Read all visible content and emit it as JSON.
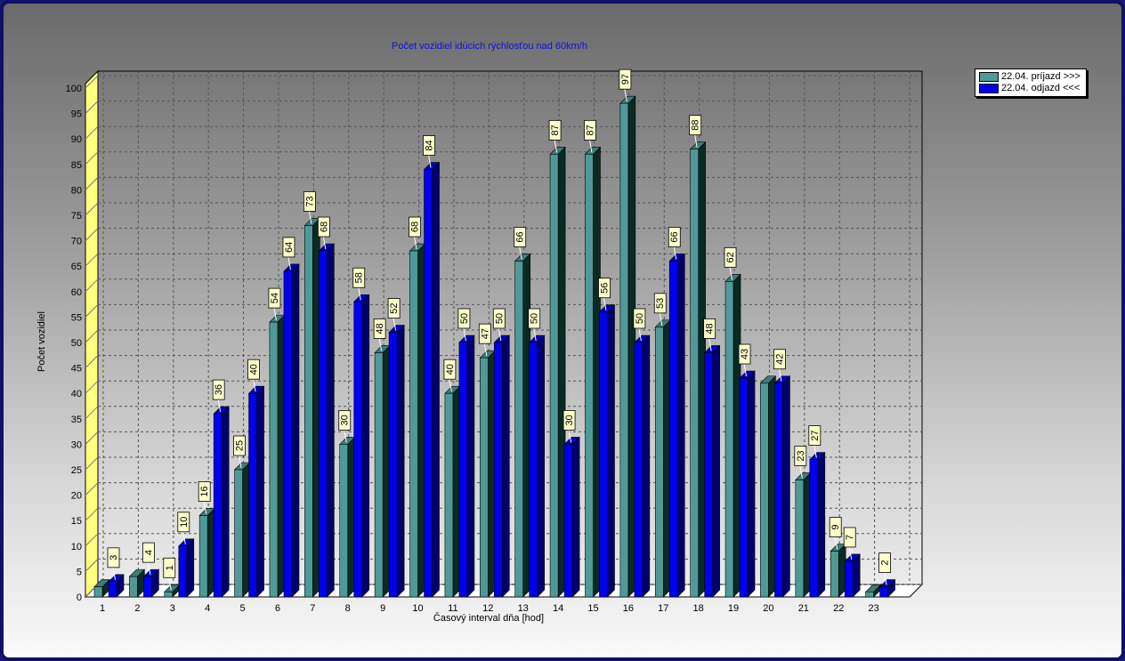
{
  "window": {
    "border_color": "#10106a"
  },
  "chart_data": {
    "type": "bar",
    "title": "Počet vozidiel idúcich rýchlosťou nad 60km/h",
    "xlabel": "Časový interval dňa [hod]",
    "ylabel": "Počet vozidiel",
    "ylim": [
      0,
      100
    ],
    "ytick_step": 5,
    "grid": true,
    "style": "3d",
    "legend_position": "top-right",
    "categories": [
      "1",
      "2",
      "3",
      "4",
      "5",
      "6",
      "7",
      "8",
      "9",
      "10",
      "11",
      "12",
      "13",
      "14",
      "15",
      "16",
      "17",
      "18",
      "19",
      "20",
      "21",
      "22",
      "23"
    ],
    "series": [
      {
        "name": "22.04.  príjazd >>>",
        "color": "#4f9a98",
        "values": [
          2,
          4,
          1,
          16,
          25,
          54,
          73,
          30,
          48,
          68,
          40,
          47,
          66,
          87,
          87,
          97,
          53,
          88,
          62,
          42,
          23,
          9,
          1
        ],
        "labels": [
          "",
          "",
          "1",
          "16",
          "25",
          "54",
          "73",
          "30",
          "48",
          "68",
          "40",
          "47",
          "66",
          "87",
          "87",
          "97",
          "53",
          "88",
          "62",
          "",
          "23",
          "9",
          ""
        ]
      },
      {
        "name": "22.04.  odjazd <<<",
        "color": "#0000ee",
        "values": [
          3,
          4,
          10,
          36,
          40,
          64,
          68,
          58,
          52,
          84,
          50,
          50,
          50,
          30,
          56,
          50,
          66,
          48,
          43,
          42,
          27,
          7,
          2
        ],
        "labels": [
          "3",
          "4",
          "10",
          "36",
          "40",
          "64",
          "68",
          "58",
          "52",
          "84",
          "50",
          "50",
          "50",
          "30",
          "56",
          "50",
          "66",
          "48",
          "43",
          "42",
          "27",
          "7",
          "2"
        ]
      }
    ]
  }
}
